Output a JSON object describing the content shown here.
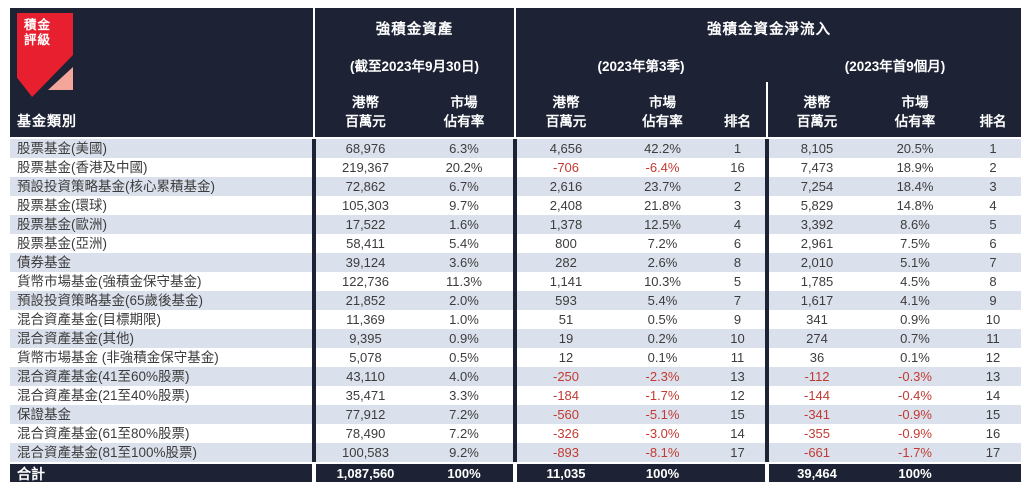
{
  "brand": {
    "logo_line1": "積金",
    "logo_line2": "評級"
  },
  "header": {
    "fund_category": "基金類別",
    "assets": {
      "title": "強積金資產",
      "subtitle": "(截至2023年9月30日)"
    },
    "netflow": {
      "title": "強積金資金淨流入",
      "q3_subtitle": "(2023年第3季)",
      "ytd_subtitle": "(2023年首9個月)"
    },
    "cols": {
      "hkd_line1": "港幣",
      "hkd_line2": "百萬元",
      "share_line1": "市場",
      "share_line2": "佔有率",
      "rank": "排名"
    }
  },
  "rows": [
    {
      "name": "股票基金(美國)",
      "assets": "68,976",
      "assets_share": "6.3%",
      "q3": "4,656",
      "q3_share": "42.2%",
      "q3_rank": "1",
      "ytd": "8,105",
      "ytd_share": "20.5%",
      "ytd_rank": "1"
    },
    {
      "name": "股票基金(香港及中國)",
      "assets": "219,367",
      "assets_share": "20.2%",
      "q3": "-706",
      "q3_share": "-6.4%",
      "q3_rank": "16",
      "ytd": "7,473",
      "ytd_share": "18.9%",
      "ytd_rank": "2"
    },
    {
      "name": "預設投資策略基金(核心累積基金)",
      "assets": "72,862",
      "assets_share": "6.7%",
      "q3": "2,616",
      "q3_share": "23.7%",
      "q3_rank": "2",
      "ytd": "7,254",
      "ytd_share": "18.4%",
      "ytd_rank": "3"
    },
    {
      "name": "股票基金(環球)",
      "assets": "105,303",
      "assets_share": "9.7%",
      "q3": "2,408",
      "q3_share": "21.8%",
      "q3_rank": "3",
      "ytd": "5,829",
      "ytd_share": "14.8%",
      "ytd_rank": "4"
    },
    {
      "name": "股票基金(歐洲)",
      "assets": "17,522",
      "assets_share": "1.6%",
      "q3": "1,378",
      "q3_share": "12.5%",
      "q3_rank": "4",
      "ytd": "3,392",
      "ytd_share": "8.6%",
      "ytd_rank": "5"
    },
    {
      "name": "股票基金(亞洲)",
      "assets": "58,411",
      "assets_share": "5.4%",
      "q3": "800",
      "q3_share": "7.2%",
      "q3_rank": "6",
      "ytd": "2,961",
      "ytd_share": "7.5%",
      "ytd_rank": "6"
    },
    {
      "name": "債券基金",
      "assets": "39,124",
      "assets_share": "3.6%",
      "q3": "282",
      "q3_share": "2.6%",
      "q3_rank": "8",
      "ytd": "2,010",
      "ytd_share": "5.1%",
      "ytd_rank": "7"
    },
    {
      "name": "貨幣市場基金(強積金保守基金)",
      "assets": "122,736",
      "assets_share": "11.3%",
      "q3": "1,141",
      "q3_share": "10.3%",
      "q3_rank": "5",
      "ytd": "1,785",
      "ytd_share": "4.5%",
      "ytd_rank": "8"
    },
    {
      "name": "預設投資策略基金(65歲後基金)",
      "assets": "21,852",
      "assets_share": "2.0%",
      "q3": "593",
      "q3_share": "5.4%",
      "q3_rank": "7",
      "ytd": "1,617",
      "ytd_share": "4.1%",
      "ytd_rank": "9"
    },
    {
      "name": "混合資產基金(目標期限)",
      "assets": "11,369",
      "assets_share": "1.0%",
      "q3": "51",
      "q3_share": "0.5%",
      "q3_rank": "9",
      "ytd": "341",
      "ytd_share": "0.9%",
      "ytd_rank": "10"
    },
    {
      "name": "混合資產基金(其他)",
      "assets": "9,395",
      "assets_share": "0.9%",
      "q3": "19",
      "q3_share": "0.2%",
      "q3_rank": "10",
      "ytd": "274",
      "ytd_share": "0.7%",
      "ytd_rank": "11"
    },
    {
      "name": "貨幣市場基金 (非強積金保守基金)",
      "assets": "5,078",
      "assets_share": "0.5%",
      "q3": "12",
      "q3_share": "0.1%",
      "q3_rank": "11",
      "ytd": "36",
      "ytd_share": "0.1%",
      "ytd_rank": "12"
    },
    {
      "name": "混合資產基金(41至60%股票)",
      "assets": "43,110",
      "assets_share": "4.0%",
      "q3": "-250",
      "q3_share": "-2.3%",
      "q3_rank": "13",
      "ytd": "-112",
      "ytd_share": "-0.3%",
      "ytd_rank": "13"
    },
    {
      "name": "混合資產基金(21至40%股票)",
      "assets": "35,471",
      "assets_share": "3.3%",
      "q3": "-184",
      "q3_share": "-1.7%",
      "q3_rank": "12",
      "ytd": "-144",
      "ytd_share": "-0.4%",
      "ytd_rank": "14"
    },
    {
      "name": "保證基金",
      "assets": "77,912",
      "assets_share": "7.2%",
      "q3": "-560",
      "q3_share": "-5.1%",
      "q3_rank": "15",
      "ytd": "-341",
      "ytd_share": "-0.9%",
      "ytd_rank": "15"
    },
    {
      "name": "混合資產基金(61至80%股票)",
      "assets": "78,490",
      "assets_share": "7.2%",
      "q3": "-326",
      "q3_share": "-3.0%",
      "q3_rank": "14",
      "ytd": "-355",
      "ytd_share": "-0.9%",
      "ytd_rank": "16"
    },
    {
      "name": "混合資產基金(81至100%股票)",
      "assets": "100,583",
      "assets_share": "9.2%",
      "q3": "-893",
      "q3_share": "-8.1%",
      "q3_rank": "17",
      "ytd": "-661",
      "ytd_share": "-1.7%",
      "ytd_rank": "17"
    }
  ],
  "total": {
    "name": "合計",
    "assets": "1,087,560",
    "assets_share": "100%",
    "q3": "11,035",
    "q3_share": "100%",
    "q3_rank": "",
    "ytd": "39,464",
    "ytd_share": "100%",
    "ytd_rank": ""
  },
  "colors": {
    "navy": "#1d2335",
    "stripe": "#dbe1ec",
    "neg": "#c23a31",
    "logo_red": "#e81f2e",
    "logo_pink": "#f3a699",
    "body_text": "#3c3c3c"
  },
  "chart_data": {
    "type": "table",
    "columns": [
      "基金類別",
      "強積金資產(截至2023年9月30日) 港幣百萬元",
      "強積金資產 市場佔有率(%)",
      "強積金資金淨流入(2023年第3季) 港幣百萬元",
      "2023年第3季 市場佔有率(%)",
      "2023年第3季 排名",
      "強積金資金淨流入(2023年首9個月) 港幣百萬元",
      "2023年首9個月 市場佔有率(%)",
      "2023年首9個月 排名"
    ],
    "rows": [
      [
        "股票基金(美國)",
        68976,
        6.3,
        4656,
        42.2,
        1,
        8105,
        20.5,
        1
      ],
      [
        "股票基金(香港及中國)",
        219367,
        20.2,
        -706,
        -6.4,
        16,
        7473,
        18.9,
        2
      ],
      [
        "預設投資策略基金(核心累積基金)",
        72862,
        6.7,
        2616,
        23.7,
        2,
        7254,
        18.4,
        3
      ],
      [
        "股票基金(環球)",
        105303,
        9.7,
        2408,
        21.8,
        3,
        5829,
        14.8,
        4
      ],
      [
        "股票基金(歐洲)",
        17522,
        1.6,
        1378,
        12.5,
        4,
        3392,
        8.6,
        5
      ],
      [
        "股票基金(亞洲)",
        58411,
        5.4,
        800,
        7.2,
        6,
        2961,
        7.5,
        6
      ],
      [
        "債券基金",
        39124,
        3.6,
        282,
        2.6,
        8,
        2010,
        5.1,
        7
      ],
      [
        "貨幣市場基金(強積金保守基金)",
        122736,
        11.3,
        1141,
        10.3,
        5,
        1785,
        4.5,
        8
      ],
      [
        "預設投資策略基金(65歲後基金)",
        21852,
        2.0,
        593,
        5.4,
        7,
        1617,
        4.1,
        9
      ],
      [
        "混合資產基金(目標期限)",
        11369,
        1.0,
        51,
        0.5,
        9,
        341,
        0.9,
        10
      ],
      [
        "混合資產基金(其他)",
        9395,
        0.9,
        19,
        0.2,
        10,
        274,
        0.7,
        11
      ],
      [
        "貨幣市場基金 (非強積金保守基金)",
        5078,
        0.5,
        12,
        0.1,
        11,
        36,
        0.1,
        12
      ],
      [
        "混合資產基金(41至60%股票)",
        43110,
        4.0,
        -250,
        -2.3,
        13,
        -112,
        -0.3,
        13
      ],
      [
        "混合資產基金(21至40%股票)",
        35471,
        3.3,
        -184,
        -1.7,
        12,
        -144,
        -0.4,
        14
      ],
      [
        "保證基金",
        77912,
        7.2,
        -560,
        -5.1,
        15,
        -341,
        -0.9,
        15
      ],
      [
        "混合資產基金(61至80%股票)",
        78490,
        7.2,
        -326,
        -3.0,
        14,
        -355,
        -0.9,
        16
      ],
      [
        "混合資產基金(81至100%股票)",
        100583,
        9.2,
        -893,
        -8.1,
        17,
        -661,
        -1.7,
        17
      ]
    ],
    "total_row": [
      "合計",
      1087560,
      100,
      11035,
      100,
      null,
      39464,
      100,
      null
    ]
  }
}
